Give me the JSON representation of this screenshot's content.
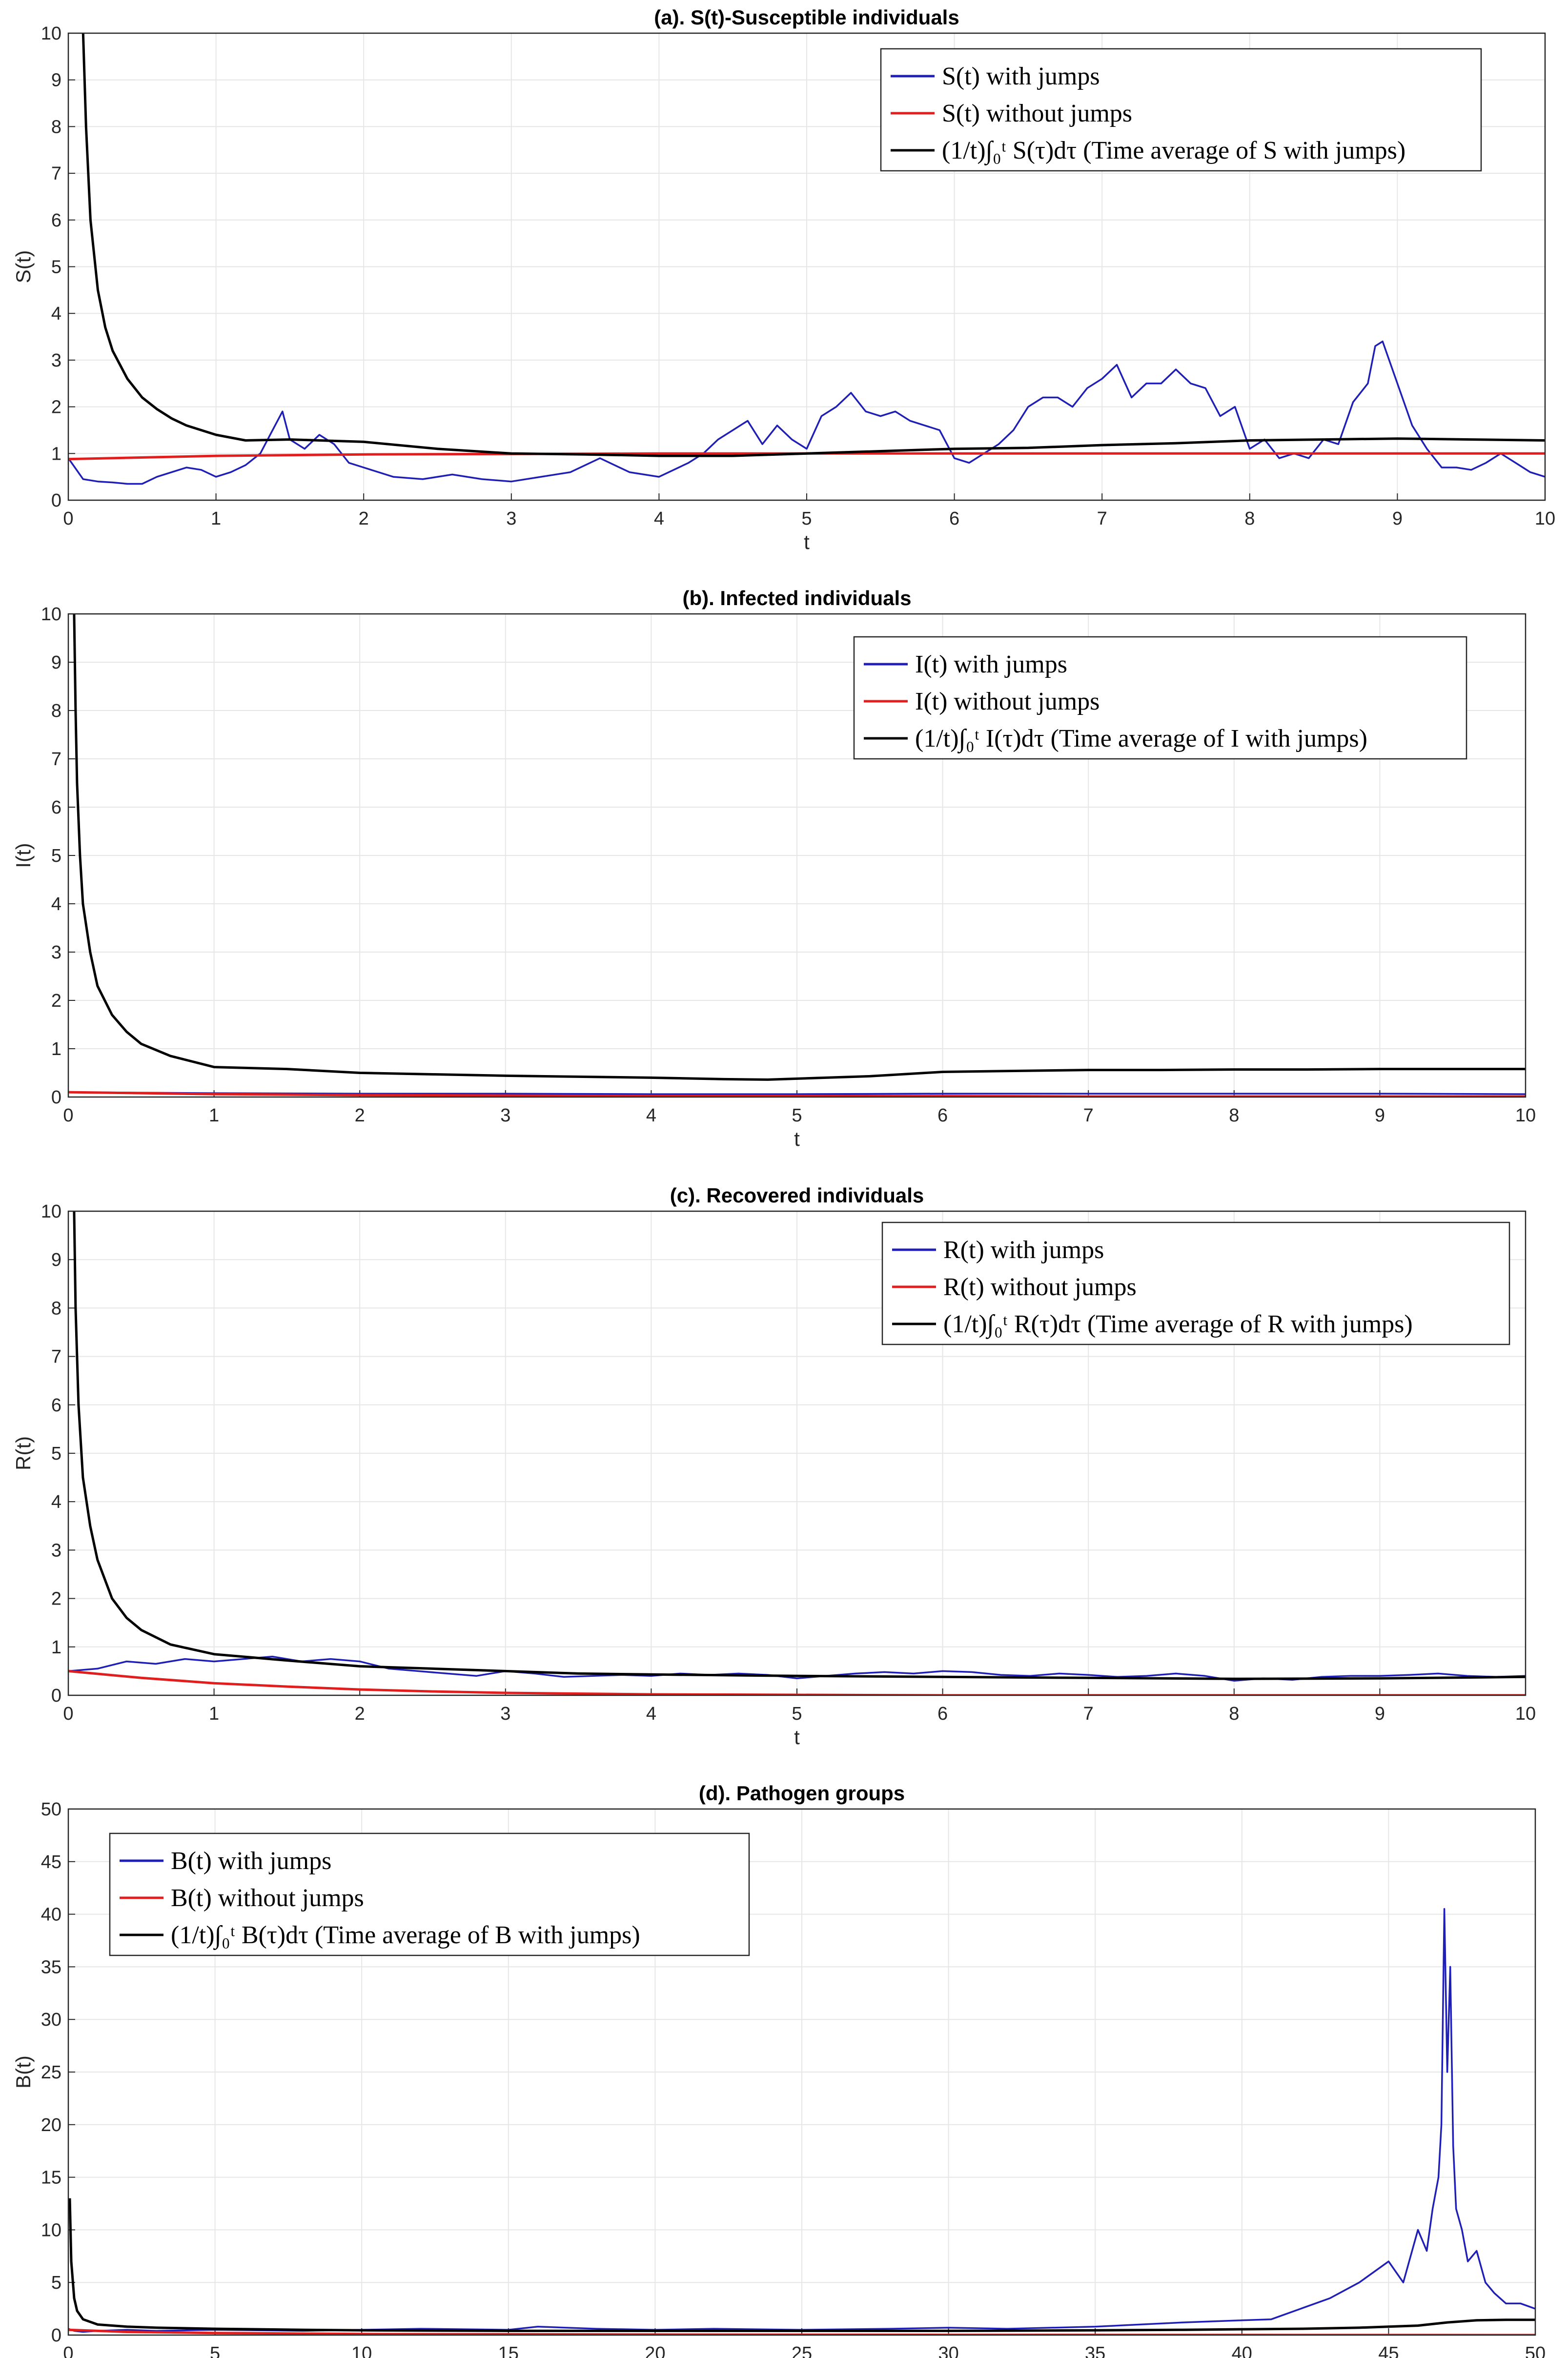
{
  "chart_data": [
    {
      "type": "line",
      "title": "(a). S(t)-Susceptible individuals",
      "xlabel": "t",
      "ylabel": "S(t)",
      "xlim": [
        0,
        10
      ],
      "ylim": [
        0,
        10
      ],
      "xticks": [
        "0",
        "1",
        "2",
        "3",
        "4",
        "5",
        "6",
        "7",
        "8",
        "9",
        "10"
      ],
      "yticks": [
        "0",
        "1",
        "2",
        "3",
        "4",
        "5",
        "6",
        "7",
        "8",
        "9",
        "10"
      ],
      "grid": true,
      "legend_position": "top-right",
      "legend": [
        "S(t) with jumps",
        "S(t) without jumps",
        "(1/t)∫₀ᵗ S(τ)dτ (Time average of S with jumps)"
      ],
      "series": [
        {
          "name": "S(t) with jumps",
          "color": "#1f1fb4",
          "x": [
            0,
            0.1,
            0.2,
            0.3,
            0.4,
            0.5,
            0.6,
            0.7,
            0.8,
            0.9,
            1.0,
            1.1,
            1.2,
            1.3,
            1.4,
            1.45,
            1.5,
            1.6,
            1.7,
            1.8,
            1.9,
            2.0,
            2.2,
            2.4,
            2.6,
            2.8,
            3.0,
            3.2,
            3.4,
            3.6,
            3.8,
            4.0,
            4.2,
            4.3,
            4.4,
            4.5,
            4.6,
            4.7,
            4.8,
            4.9,
            5.0,
            5.1,
            5.2,
            5.3,
            5.4,
            5.5,
            5.6,
            5.7,
            5.8,
            5.9,
            6.0,
            6.1,
            6.2,
            6.3,
            6.4,
            6.5,
            6.6,
            6.7,
            6.8,
            6.9,
            7.0,
            7.1,
            7.2,
            7.3,
            7.4,
            7.5,
            7.6,
            7.7,
            7.8,
            7.9,
            8.0,
            8.1,
            8.2,
            8.3,
            8.4,
            8.5,
            8.6,
            8.7,
            8.8,
            8.85,
            8.9,
            9.0,
            9.1,
            9.2,
            9.3,
            9.4,
            9.5,
            9.6,
            9.7,
            9.8,
            9.9,
            10.0
          ],
          "y": [
            0.9,
            0.45,
            0.4,
            0.38,
            0.35,
            0.35,
            0.5,
            0.6,
            0.7,
            0.65,
            0.5,
            0.6,
            0.75,
            1.0,
            1.6,
            1.9,
            1.3,
            1.1,
            1.4,
            1.2,
            0.8,
            0.7,
            0.5,
            0.45,
            0.55,
            0.45,
            0.4,
            0.5,
            0.6,
            0.9,
            0.6,
            0.5,
            0.8,
            1.0,
            1.3,
            1.5,
            1.7,
            1.2,
            1.6,
            1.3,
            1.1,
            1.8,
            2.0,
            2.3,
            1.9,
            1.8,
            1.9,
            1.7,
            1.6,
            1.5,
            0.9,
            0.8,
            1.0,
            1.2,
            1.5,
            2.0,
            2.2,
            2.2,
            2.0,
            2.4,
            2.6,
            2.9,
            2.2,
            2.5,
            2.5,
            2.8,
            2.5,
            2.4,
            1.8,
            2.0,
            1.1,
            1.3,
            0.9,
            1.0,
            0.9,
            1.3,
            1.2,
            2.1,
            2.5,
            3.3,
            3.4,
            2.5,
            1.6,
            1.1,
            0.7,
            0.7,
            0.65,
            0.8,
            1.0,
            0.8,
            0.6,
            0.5
          ]
        },
        {
          "name": "S(t) without jumps",
          "color": "#e01e1e",
          "x": [
            0,
            1,
            2,
            3,
            4,
            5,
            6,
            7,
            8,
            9,
            10
          ],
          "y": [
            0.88,
            0.95,
            0.98,
            0.99,
            1.0,
            1.0,
            1.0,
            1.0,
            1.0,
            1.0,
            1.0
          ]
        },
        {
          "name": "Time average of S with jumps",
          "color": "#000000",
          "x": [
            0.1,
            0.12,
            0.15,
            0.2,
            0.25,
            0.3,
            0.4,
            0.5,
            0.6,
            0.7,
            0.8,
            1.0,
            1.2,
            1.5,
            2.0,
            2.5,
            3.0,
            3.5,
            4.0,
            4.5,
            5.0,
            5.5,
            6.0,
            6.5,
            7.0,
            7.5,
            8.0,
            8.5,
            9.0,
            9.5,
            10.0
          ],
          "y": [
            10,
            8.0,
            6.0,
            4.5,
            3.7,
            3.2,
            2.6,
            2.2,
            1.95,
            1.75,
            1.6,
            1.4,
            1.28,
            1.3,
            1.25,
            1.1,
            1.0,
            0.98,
            0.95,
            0.95,
            1.0,
            1.05,
            1.1,
            1.12,
            1.18,
            1.22,
            1.28,
            1.3,
            1.32,
            1.3,
            1.28
          ]
        }
      ]
    },
    {
      "type": "line",
      "title": "(b). Infected individuals",
      "xlabel": "t",
      "ylabel": "I(t)",
      "xlim": [
        0,
        10
      ],
      "ylim": [
        0,
        10
      ],
      "xticks": [
        "0",
        "1",
        "2",
        "3",
        "4",
        "5",
        "6",
        "7",
        "8",
        "9",
        "10"
      ],
      "yticks": [
        "0",
        "1",
        "2",
        "3",
        "4",
        "5",
        "6",
        "7",
        "8",
        "9",
        "10"
      ],
      "grid": true,
      "legend_position": "top-right",
      "legend": [
        "I(t) with jumps",
        "I(t) without jumps",
        "(1/t)∫₀ᵗ I(τ)dτ (Time average of I with jumps)"
      ],
      "series": [
        {
          "name": "I(t) with jumps",
          "color": "#1f1fb4",
          "x": [
            0,
            1,
            2,
            3,
            4,
            5,
            6,
            7,
            8,
            9,
            10
          ],
          "y": [
            0.1,
            0.08,
            0.07,
            0.07,
            0.06,
            0.06,
            0.07,
            0.07,
            0.07,
            0.07,
            0.06
          ]
        },
        {
          "name": "I(t) without jumps",
          "color": "#e01e1e",
          "x": [
            0,
            1,
            2,
            3,
            4,
            5,
            6,
            7,
            8,
            9,
            10
          ],
          "y": [
            0.1,
            0.06,
            0.04,
            0.03,
            0.02,
            0.02,
            0.02,
            0.01,
            0.01,
            0.01,
            0.01
          ]
        },
        {
          "name": "Time average of I with jumps",
          "color": "#000000",
          "x": [
            0.04,
            0.05,
            0.06,
            0.08,
            0.1,
            0.15,
            0.2,
            0.3,
            0.4,
            0.5,
            0.7,
            1.0,
            1.5,
            2.0,
            2.5,
            3.0,
            3.5,
            4.0,
            4.5,
            4.8,
            5.0,
            5.5,
            6.0,
            6.5,
            7.0,
            7.5,
            8.0,
            8.5,
            9.0,
            9.5,
            10.0
          ],
          "y": [
            10,
            8.0,
            6.5,
            5.0,
            4.0,
            3.0,
            2.3,
            1.7,
            1.35,
            1.1,
            0.85,
            0.62,
            0.58,
            0.5,
            0.47,
            0.44,
            0.42,
            0.4,
            0.37,
            0.36,
            0.38,
            0.43,
            0.52,
            0.54,
            0.56,
            0.56,
            0.57,
            0.57,
            0.58,
            0.58,
            0.58
          ]
        }
      ]
    },
    {
      "type": "line",
      "title": "(c). Recovered individuals",
      "xlabel": "t",
      "ylabel": "R(t)",
      "xlim": [
        0,
        10
      ],
      "ylim": [
        0,
        10
      ],
      "xticks": [
        "0",
        "1",
        "2",
        "3",
        "4",
        "5",
        "6",
        "7",
        "8",
        "9",
        "10"
      ],
      "yticks": [
        "0",
        "1",
        "2",
        "3",
        "4",
        "5",
        "6",
        "7",
        "8",
        "9",
        "10"
      ],
      "grid": true,
      "legend_position": "top-right",
      "legend": [
        "R(t) with jumps",
        "R(t) without jumps",
        "(1/t)∫₀ᵗ R(τ)dτ (Time average of R with jumps)"
      ],
      "series": [
        {
          "name": "R(t) with jumps",
          "color": "#1f1fb4",
          "x": [
            0,
            0.2,
            0.4,
            0.6,
            0.8,
            1.0,
            1.2,
            1.4,
            1.6,
            1.8,
            2.0,
            2.2,
            2.4,
            2.6,
            2.8,
            3.0,
            3.2,
            3.4,
            3.6,
            3.8,
            4.0,
            4.2,
            4.4,
            4.6,
            4.8,
            5.0,
            5.2,
            5.4,
            5.6,
            5.8,
            6.0,
            6.2,
            6.4,
            6.6,
            6.8,
            7.0,
            7.2,
            7.4,
            7.6,
            7.8,
            8.0,
            8.2,
            8.4,
            8.6,
            8.8,
            9.0,
            9.2,
            9.4,
            9.6,
            9.8,
            10.0
          ],
          "y": [
            0.5,
            0.55,
            0.7,
            0.65,
            0.75,
            0.7,
            0.75,
            0.8,
            0.7,
            0.75,
            0.7,
            0.55,
            0.5,
            0.45,
            0.4,
            0.5,
            0.45,
            0.38,
            0.4,
            0.42,
            0.4,
            0.45,
            0.42,
            0.45,
            0.42,
            0.35,
            0.4,
            0.45,
            0.48,
            0.45,
            0.5,
            0.48,
            0.42,
            0.4,
            0.45,
            0.42,
            0.38,
            0.4,
            0.45,
            0.4,
            0.3,
            0.35,
            0.32,
            0.38,
            0.4,
            0.4,
            0.42,
            0.45,
            0.4,
            0.38,
            0.4
          ]
        },
        {
          "name": "R(t) without jumps",
          "color": "#e01e1e",
          "x": [
            0,
            0.5,
            1,
            1.5,
            2,
            2.5,
            3,
            4,
            5,
            6,
            7,
            8,
            9,
            10
          ],
          "y": [
            0.5,
            0.36,
            0.25,
            0.18,
            0.12,
            0.08,
            0.05,
            0.02,
            0.01,
            0.0,
            0.0,
            0.0,
            0.0,
            0.0
          ]
        },
        {
          "name": "Time average of R with jumps",
          "color": "#000000",
          "x": [
            0.04,
            0.05,
            0.07,
            0.1,
            0.15,
            0.2,
            0.3,
            0.4,
            0.5,
            0.7,
            1.0,
            1.5,
            2.0,
            2.5,
            3.0,
            3.5,
            4.0,
            5.0,
            6.0,
            7.0,
            8.0,
            9.0,
            10.0
          ],
          "y": [
            10,
            8.0,
            6.0,
            4.5,
            3.5,
            2.8,
            2.0,
            1.6,
            1.35,
            1.05,
            0.85,
            0.72,
            0.6,
            0.55,
            0.5,
            0.45,
            0.43,
            0.4,
            0.38,
            0.36,
            0.34,
            0.35,
            0.38
          ]
        }
      ]
    },
    {
      "type": "line",
      "title": "(d). Pathogen groups",
      "xlabel": "t",
      "ylabel": "B(t)",
      "xlim": [
        0,
        50
      ],
      "ylim": [
        0,
        50
      ],
      "xticks": [
        "0",
        "5",
        "10",
        "15",
        "20",
        "25",
        "30",
        "35",
        "40",
        "45",
        "50"
      ],
      "yticks": [
        "0",
        "5",
        "10",
        "15",
        "20",
        "25",
        "30",
        "35",
        "40",
        "45",
        "50"
      ],
      "grid": true,
      "legend_position": "top-left",
      "legend": [
        "B(t) with jumps",
        "B(t) without jumps",
        "(1/t)∫₀ᵗ B(τ)dτ (Time average of B with jumps)"
      ],
      "series": [
        {
          "name": "B(t) with jumps",
          "color": "#1f1fb4",
          "x": [
            0,
            0.2,
            0.5,
            1,
            2,
            3,
            5,
            8,
            10,
            12,
            15,
            16,
            18,
            20,
            22,
            25,
            28,
            30,
            32,
            35,
            38,
            40,
            41,
            42,
            43,
            44,
            45,
            45.5,
            46,
            46.3,
            46.5,
            46.7,
            46.8,
            46.9,
            47.0,
            47.1,
            47.2,
            47.3,
            47.5,
            47.7,
            48.0,
            48.3,
            48.6,
            49.0,
            49.5,
            50.0
          ],
          "y": [
            0.6,
            0.4,
            0.3,
            0.4,
            0.5,
            0.4,
            0.5,
            0.4,
            0.5,
            0.6,
            0.5,
            0.8,
            0.6,
            0.5,
            0.6,
            0.5,
            0.6,
            0.7,
            0.6,
            0.8,
            1.2,
            1.4,
            1.5,
            2.5,
            3.5,
            5.0,
            7.0,
            5.0,
            10.0,
            8.0,
            12.0,
            15.0,
            20.0,
            40.5,
            25.0,
            35.0,
            18.0,
            12.0,
            10.0,
            7.0,
            8.0,
            5.0,
            4.0,
            3.0,
            3.0,
            2.5
          ]
        },
        {
          "name": "B(t) without jumps",
          "color": "#e01e1e",
          "x": [
            0,
            2,
            5,
            10,
            20,
            30,
            40,
            50
          ],
          "y": [
            0.5,
            0.3,
            0.2,
            0.1,
            0.05,
            0.02,
            0.01,
            0.0
          ]
        },
        {
          "name": "Time average of B with jumps",
          "color": "#000000",
          "x": [
            0.05,
            0.1,
            0.2,
            0.3,
            0.5,
            1,
            2,
            3,
            5,
            8,
            10,
            15,
            20,
            25,
            30,
            35,
            38,
            40,
            42,
            44,
            45,
            46,
            47,
            48,
            49,
            50
          ],
          "y": [
            13.0,
            7.0,
            3.5,
            2.3,
            1.5,
            1.0,
            0.8,
            0.7,
            0.6,
            0.5,
            0.45,
            0.4,
            0.4,
            0.4,
            0.4,
            0.45,
            0.5,
            0.55,
            0.6,
            0.7,
            0.8,
            0.9,
            1.2,
            1.4,
            1.45,
            1.45
          ]
        }
      ]
    }
  ]
}
